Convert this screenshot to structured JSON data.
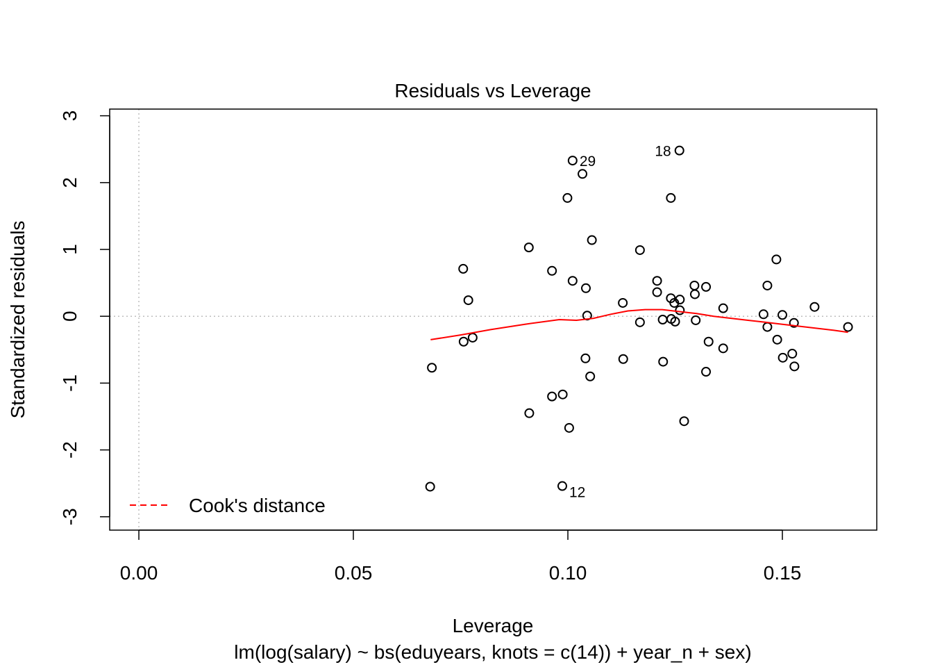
{
  "chart_data": {
    "type": "scatter",
    "title": "Residuals vs Leverage",
    "xlabel": "Leverage",
    "ylabel": "Standardized residuals",
    "subtitle": "lm(log(salary) ~ bs(eduyears, knots = c(14)) + year_n + sex)",
    "xlim": [
      -0.0068,
      0.172
    ],
    "ylim": [
      -3.2,
      3.1
    ],
    "x_ticks": [
      0.0,
      0.05,
      0.1,
      0.15
    ],
    "x_tick_labels": [
      "0.00",
      "0.05",
      "0.10",
      "0.15"
    ],
    "y_ticks": [
      -3,
      -2,
      -1,
      0,
      1,
      2,
      3
    ],
    "y_tick_labels": [
      "-3",
      "-2",
      "-1",
      "0",
      "1",
      "2",
      "3"
    ],
    "reference_lines": {
      "x": 0,
      "y": 0,
      "style": "dotted",
      "color": "#bebebe"
    },
    "points": [
      {
        "x": 0.0679,
        "y": -2.55,
        "label": ""
      },
      {
        "x": 0.0683,
        "y": -0.77,
        "label": ""
      },
      {
        "x": 0.0756,
        "y": 0.71,
        "label": ""
      },
      {
        "x": 0.0757,
        "y": -0.38,
        "label": ""
      },
      {
        "x": 0.0768,
        "y": 0.24,
        "label": ""
      },
      {
        "x": 0.0778,
        "y": -0.32,
        "label": ""
      },
      {
        "x": 0.0909,
        "y": 1.03,
        "label": ""
      },
      {
        "x": 0.091,
        "y": -1.45,
        "label": ""
      },
      {
        "x": 0.0963,
        "y": -1.2,
        "label": ""
      },
      {
        "x": 0.0963,
        "y": 0.68,
        "label": ""
      },
      {
        "x": 0.0987,
        "y": -2.54,
        "label": "12"
      },
      {
        "x": 0.0988,
        "y": -1.17,
        "label": ""
      },
      {
        "x": 0.0999,
        "y": 1.77,
        "label": ""
      },
      {
        "x": 0.1003,
        "y": -1.67,
        "label": ""
      },
      {
        "x": 0.1011,
        "y": 2.33,
        "label": "29"
      },
      {
        "x": 0.1011,
        "y": 0.53,
        "label": ""
      },
      {
        "x": 0.1034,
        "y": 2.13,
        "label": ""
      },
      {
        "x": 0.1041,
        "y": -0.63,
        "label": ""
      },
      {
        "x": 0.1042,
        "y": 0.42,
        "label": ""
      },
      {
        "x": 0.1045,
        "y": 0.01,
        "label": ""
      },
      {
        "x": 0.1052,
        "y": -0.9,
        "label": ""
      },
      {
        "x": 0.1056,
        "y": 1.14,
        "label": ""
      },
      {
        "x": 0.1128,
        "y": 0.2,
        "label": ""
      },
      {
        "x": 0.1129,
        "y": -0.64,
        "label": ""
      },
      {
        "x": 0.1168,
        "y": 0.99,
        "label": ""
      },
      {
        "x": 0.1168,
        "y": -0.09,
        "label": ""
      },
      {
        "x": 0.1208,
        "y": 0.53,
        "label": ""
      },
      {
        "x": 0.1208,
        "y": 0.36,
        "label": ""
      },
      {
        "x": 0.1221,
        "y": -0.05,
        "label": ""
      },
      {
        "x": 0.1222,
        "y": -0.68,
        "label": ""
      },
      {
        "x": 0.124,
        "y": 1.77,
        "label": ""
      },
      {
        "x": 0.124,
        "y": 0.27,
        "label": ""
      },
      {
        "x": 0.1241,
        "y": -0.04,
        "label": ""
      },
      {
        "x": 0.1248,
        "y": 0.2,
        "label": ""
      },
      {
        "x": 0.125,
        "y": -0.08,
        "label": ""
      },
      {
        "x": 0.126,
        "y": 2.48,
        "label": "18"
      },
      {
        "x": 0.1261,
        "y": 0.25,
        "label": ""
      },
      {
        "x": 0.1261,
        "y": 0.09,
        "label": ""
      },
      {
        "x": 0.1271,
        "y": -1.57,
        "label": ""
      },
      {
        "x": 0.1295,
        "y": 0.46,
        "label": ""
      },
      {
        "x": 0.1296,
        "y": 0.33,
        "label": ""
      },
      {
        "x": 0.1298,
        "y": -0.06,
        "label": ""
      },
      {
        "x": 0.1322,
        "y": 0.44,
        "label": ""
      },
      {
        "x": 0.1322,
        "y": -0.83,
        "label": ""
      },
      {
        "x": 0.1328,
        "y": -0.38,
        "label": ""
      },
      {
        "x": 0.1362,
        "y": 0.12,
        "label": ""
      },
      {
        "x": 0.1362,
        "y": -0.48,
        "label": ""
      },
      {
        "x": 0.1456,
        "y": 0.03,
        "label": ""
      },
      {
        "x": 0.1465,
        "y": 0.46,
        "label": ""
      },
      {
        "x": 0.1465,
        "y": -0.16,
        "label": ""
      },
      {
        "x": 0.1486,
        "y": 0.85,
        "label": ""
      },
      {
        "x": 0.1488,
        "y": -0.35,
        "label": ""
      },
      {
        "x": 0.15,
        "y": 0.02,
        "label": ""
      },
      {
        "x": 0.1501,
        "y": -0.62,
        "label": ""
      },
      {
        "x": 0.1523,
        "y": -0.56,
        "label": ""
      },
      {
        "x": 0.1527,
        "y": -0.1,
        "label": ""
      },
      {
        "x": 0.1528,
        "y": -0.75,
        "label": ""
      },
      {
        "x": 0.1575,
        "y": 0.14,
        "label": ""
      },
      {
        "x": 0.1653,
        "y": -0.16,
        "label": ""
      }
    ],
    "smooth_line": {
      "color": "#ff0000",
      "points": [
        [
          0.068,
          -0.35
        ],
        [
          0.075,
          -0.28
        ],
        [
          0.082,
          -0.2
        ],
        [
          0.09,
          -0.12
        ],
        [
          0.098,
          -0.05
        ],
        [
          0.102,
          -0.06
        ],
        [
          0.106,
          -0.03
        ],
        [
          0.11,
          0.03
        ],
        [
          0.114,
          0.08
        ],
        [
          0.118,
          0.1
        ],
        [
          0.122,
          0.1
        ],
        [
          0.126,
          0.07
        ],
        [
          0.13,
          0.04
        ],
        [
          0.134,
          0.0
        ],
        [
          0.138,
          -0.03
        ],
        [
          0.142,
          -0.06
        ],
        [
          0.146,
          -0.09
        ],
        [
          0.15,
          -0.12
        ],
        [
          0.154,
          -0.15
        ],
        [
          0.158,
          -0.18
        ],
        [
          0.162,
          -0.21
        ],
        [
          0.1653,
          -0.24
        ]
      ]
    },
    "legend": {
      "position": "bottom-left",
      "entries": [
        {
          "label": "Cook's distance",
          "color": "#ff0000",
          "style": "dashed"
        }
      ]
    }
  }
}
